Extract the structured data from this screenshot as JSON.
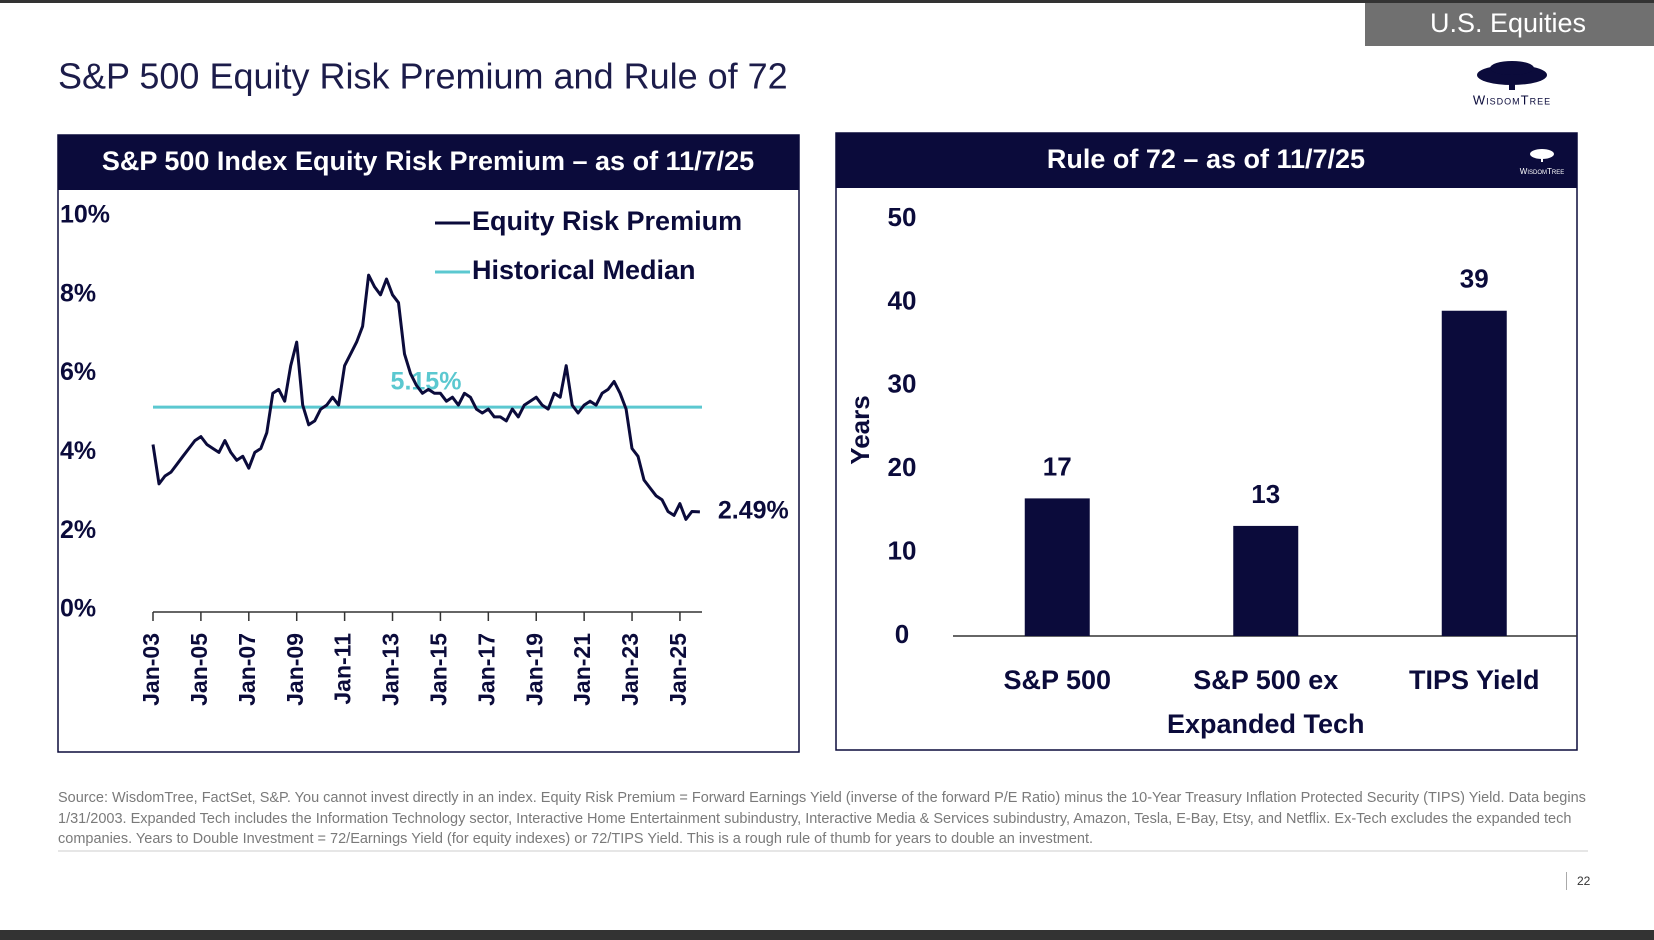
{
  "header": {
    "section": "U.S. Equities",
    "title": "S&P 500 Equity Risk Premium and Rule of 72",
    "logo": "WisdomTree"
  },
  "chart_data": [
    {
      "type": "line",
      "title": "S&P 500 Index Equity Risk Premium – as of 11/7/25",
      "x": [
        "Jan-03",
        "Apr-03",
        "Jul-03",
        "Oct-03",
        "Jan-04",
        "Apr-04",
        "Jul-04",
        "Oct-04",
        "Jan-05",
        "Apr-05",
        "Jul-05",
        "Oct-05",
        "Jan-06",
        "Apr-06",
        "Jul-06",
        "Oct-06",
        "Jan-07",
        "Apr-07",
        "Jul-07",
        "Oct-07",
        "Jan-08",
        "Apr-08",
        "Jul-08",
        "Oct-08",
        "Jan-09",
        "Apr-09",
        "Jul-09",
        "Oct-09",
        "Jan-10",
        "Apr-10",
        "Jul-10",
        "Oct-10",
        "Jan-11",
        "Apr-11",
        "Jul-11",
        "Oct-11",
        "Jan-12",
        "Apr-12",
        "Jul-12",
        "Oct-12",
        "Jan-13",
        "Apr-13",
        "Jul-13",
        "Oct-13",
        "Jan-14",
        "Apr-14",
        "Jul-14",
        "Oct-14",
        "Jan-15",
        "Apr-15",
        "Jul-15",
        "Oct-15",
        "Jan-16",
        "Apr-16",
        "Jul-16",
        "Oct-16",
        "Jan-17",
        "Apr-17",
        "Jul-17",
        "Oct-17",
        "Jan-18",
        "Apr-18",
        "Jul-18",
        "Oct-18",
        "Jan-19",
        "Apr-19",
        "Jul-19",
        "Oct-19",
        "Jan-20",
        "Apr-20",
        "Jul-20",
        "Oct-20",
        "Jan-21",
        "Apr-21",
        "Jul-21",
        "Oct-21",
        "Jan-22",
        "Apr-22",
        "Jul-22",
        "Oct-22",
        "Jan-23",
        "Apr-23",
        "Jul-23",
        "Oct-23",
        "Jan-24",
        "Apr-24",
        "Jul-24",
        "Oct-24",
        "Jan-25",
        "Apr-25",
        "Jul-25",
        "Nov-25"
      ],
      "series": [
        {
          "name": "Equity Risk Premium",
          "color": "#0b0b3b",
          "values": [
            4.2,
            3.2,
            3.4,
            3.5,
            3.7,
            3.9,
            4.1,
            4.3,
            4.4,
            4.2,
            4.1,
            4.0,
            4.3,
            4.0,
            3.8,
            3.9,
            3.6,
            4.0,
            4.1,
            4.5,
            5.5,
            5.6,
            5.3,
            6.2,
            6.8,
            5.2,
            4.7,
            4.8,
            5.1,
            5.2,
            5.4,
            5.2,
            6.2,
            6.5,
            6.8,
            7.2,
            8.5,
            8.2,
            8.0,
            8.4,
            8.0,
            7.8,
            6.5,
            6.0,
            5.7,
            5.5,
            5.6,
            5.5,
            5.5,
            5.3,
            5.4,
            5.2,
            5.5,
            5.4,
            5.1,
            5.0,
            5.1,
            4.9,
            4.9,
            4.8,
            5.1,
            4.9,
            5.2,
            5.3,
            5.4,
            5.2,
            5.1,
            5.5,
            5.4,
            6.2,
            5.2,
            5.0,
            5.2,
            5.3,
            5.2,
            5.5,
            5.6,
            5.8,
            5.5,
            5.1,
            4.1,
            3.9,
            3.3,
            3.1,
            2.9,
            2.8,
            2.5,
            2.4,
            2.7,
            2.3,
            2.5,
            2.49
          ]
        }
      ],
      "reference_line": {
        "name": "Historical Median",
        "color": "#5bc8d0",
        "value": 5.15,
        "value_label": "5.15%"
      },
      "end_label": "2.49%",
      "ylim": [
        0,
        10
      ],
      "yticks": [
        {
          "value": 0,
          "label": "0%"
        },
        {
          "value": 2,
          "label": "2%"
        },
        {
          "value": 4,
          "label": "4%"
        },
        {
          "value": 6,
          "label": "6%"
        },
        {
          "value": 8,
          "label": "8%"
        },
        {
          "value": 10,
          "label": "10%"
        }
      ],
      "xticks": [
        "Jan-03",
        "Jan-05",
        "Jan-07",
        "Jan-09",
        "Jan-11",
        "Jan-13",
        "Jan-15",
        "Jan-17",
        "Jan-19",
        "Jan-21",
        "Jan-23",
        "Jan-25"
      ],
      "legend": "upper right"
    },
    {
      "type": "bar",
      "title": "Rule of 72 – as of 11/7/25",
      "logo": "WisdomTree",
      "ylabel": "Years",
      "categories": [
        "S&P 500",
        "S&P 500 ex Expanded Tech",
        "TIPS Yield"
      ],
      "values": [
        16.5,
        13.2,
        39
      ],
      "value_labels": [
        "17",
        "13",
        "39"
      ],
      "color": "#0b0b3b",
      "ylim": [
        0,
        50
      ],
      "yticks": [
        0,
        10,
        20,
        30,
        40,
        50
      ]
    }
  ],
  "footer": {
    "source": "Source:  WisdomTree, FactSet, S&P. You cannot invest directly in an index. Equity Risk Premium = Forward Earnings Yield (inverse of the forward P/E Ratio) minus the 10-Year Treasury Inflation Protected Security (TIPS) Yield. Data begins 1/31/2003. Expanded Tech includes the Information Technology sector, Interactive Home Entertainment subindustry, Interactive Media & Services subindustry, Amazon, Tesla, E-Bay, Etsy, and Netflix. Ex-Tech excludes the expanded tech companies. Years to Double Investment = 72/Earnings Yield (for equity indexes) or 72/TIPS Yield. This is a rough rule of thumb for years to double an investment.",
    "page": "22"
  }
}
